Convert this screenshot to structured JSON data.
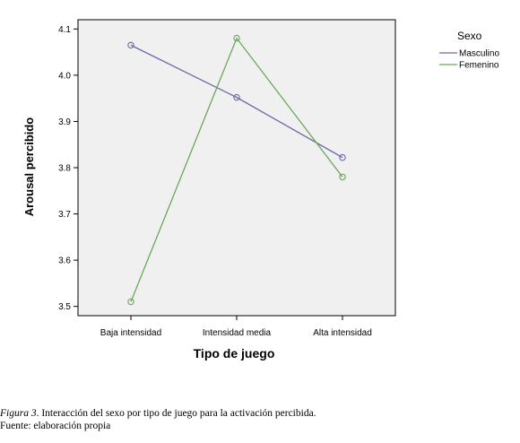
{
  "chart_data": {
    "type": "line",
    "categories": [
      "Baja intensidad",
      "Intensidad media",
      "Alta intensidad"
    ],
    "xlabel": "Tipo de juego",
    "ylabel": "Arousal percibido",
    "ylim": [
      3.48,
      4.12
    ],
    "yticks": [
      3.5,
      3.6,
      3.7,
      3.8,
      3.9,
      4.0,
      4.1
    ],
    "ytick_labels": [
      "3.5",
      "3.6",
      "3.7",
      "3.8",
      "3.9",
      "4.0",
      "4.1"
    ],
    "grid": false,
    "legend_title": "Sexo",
    "legend_position": "top-right outside",
    "series": [
      {
        "name": "Masculino",
        "color": "#6a6aa8",
        "values": [
          4.065,
          3.952,
          3.822
        ]
      },
      {
        "name": "Femenino",
        "color": "#6aa85a",
        "values": [
          3.51,
          4.08,
          3.78
        ]
      }
    ]
  },
  "caption": {
    "figure_label": "Figura 3",
    "text": ". Interacción del sexo por tipo de juego para la activación percibida.",
    "source": "Fuente: elaboración propia"
  }
}
